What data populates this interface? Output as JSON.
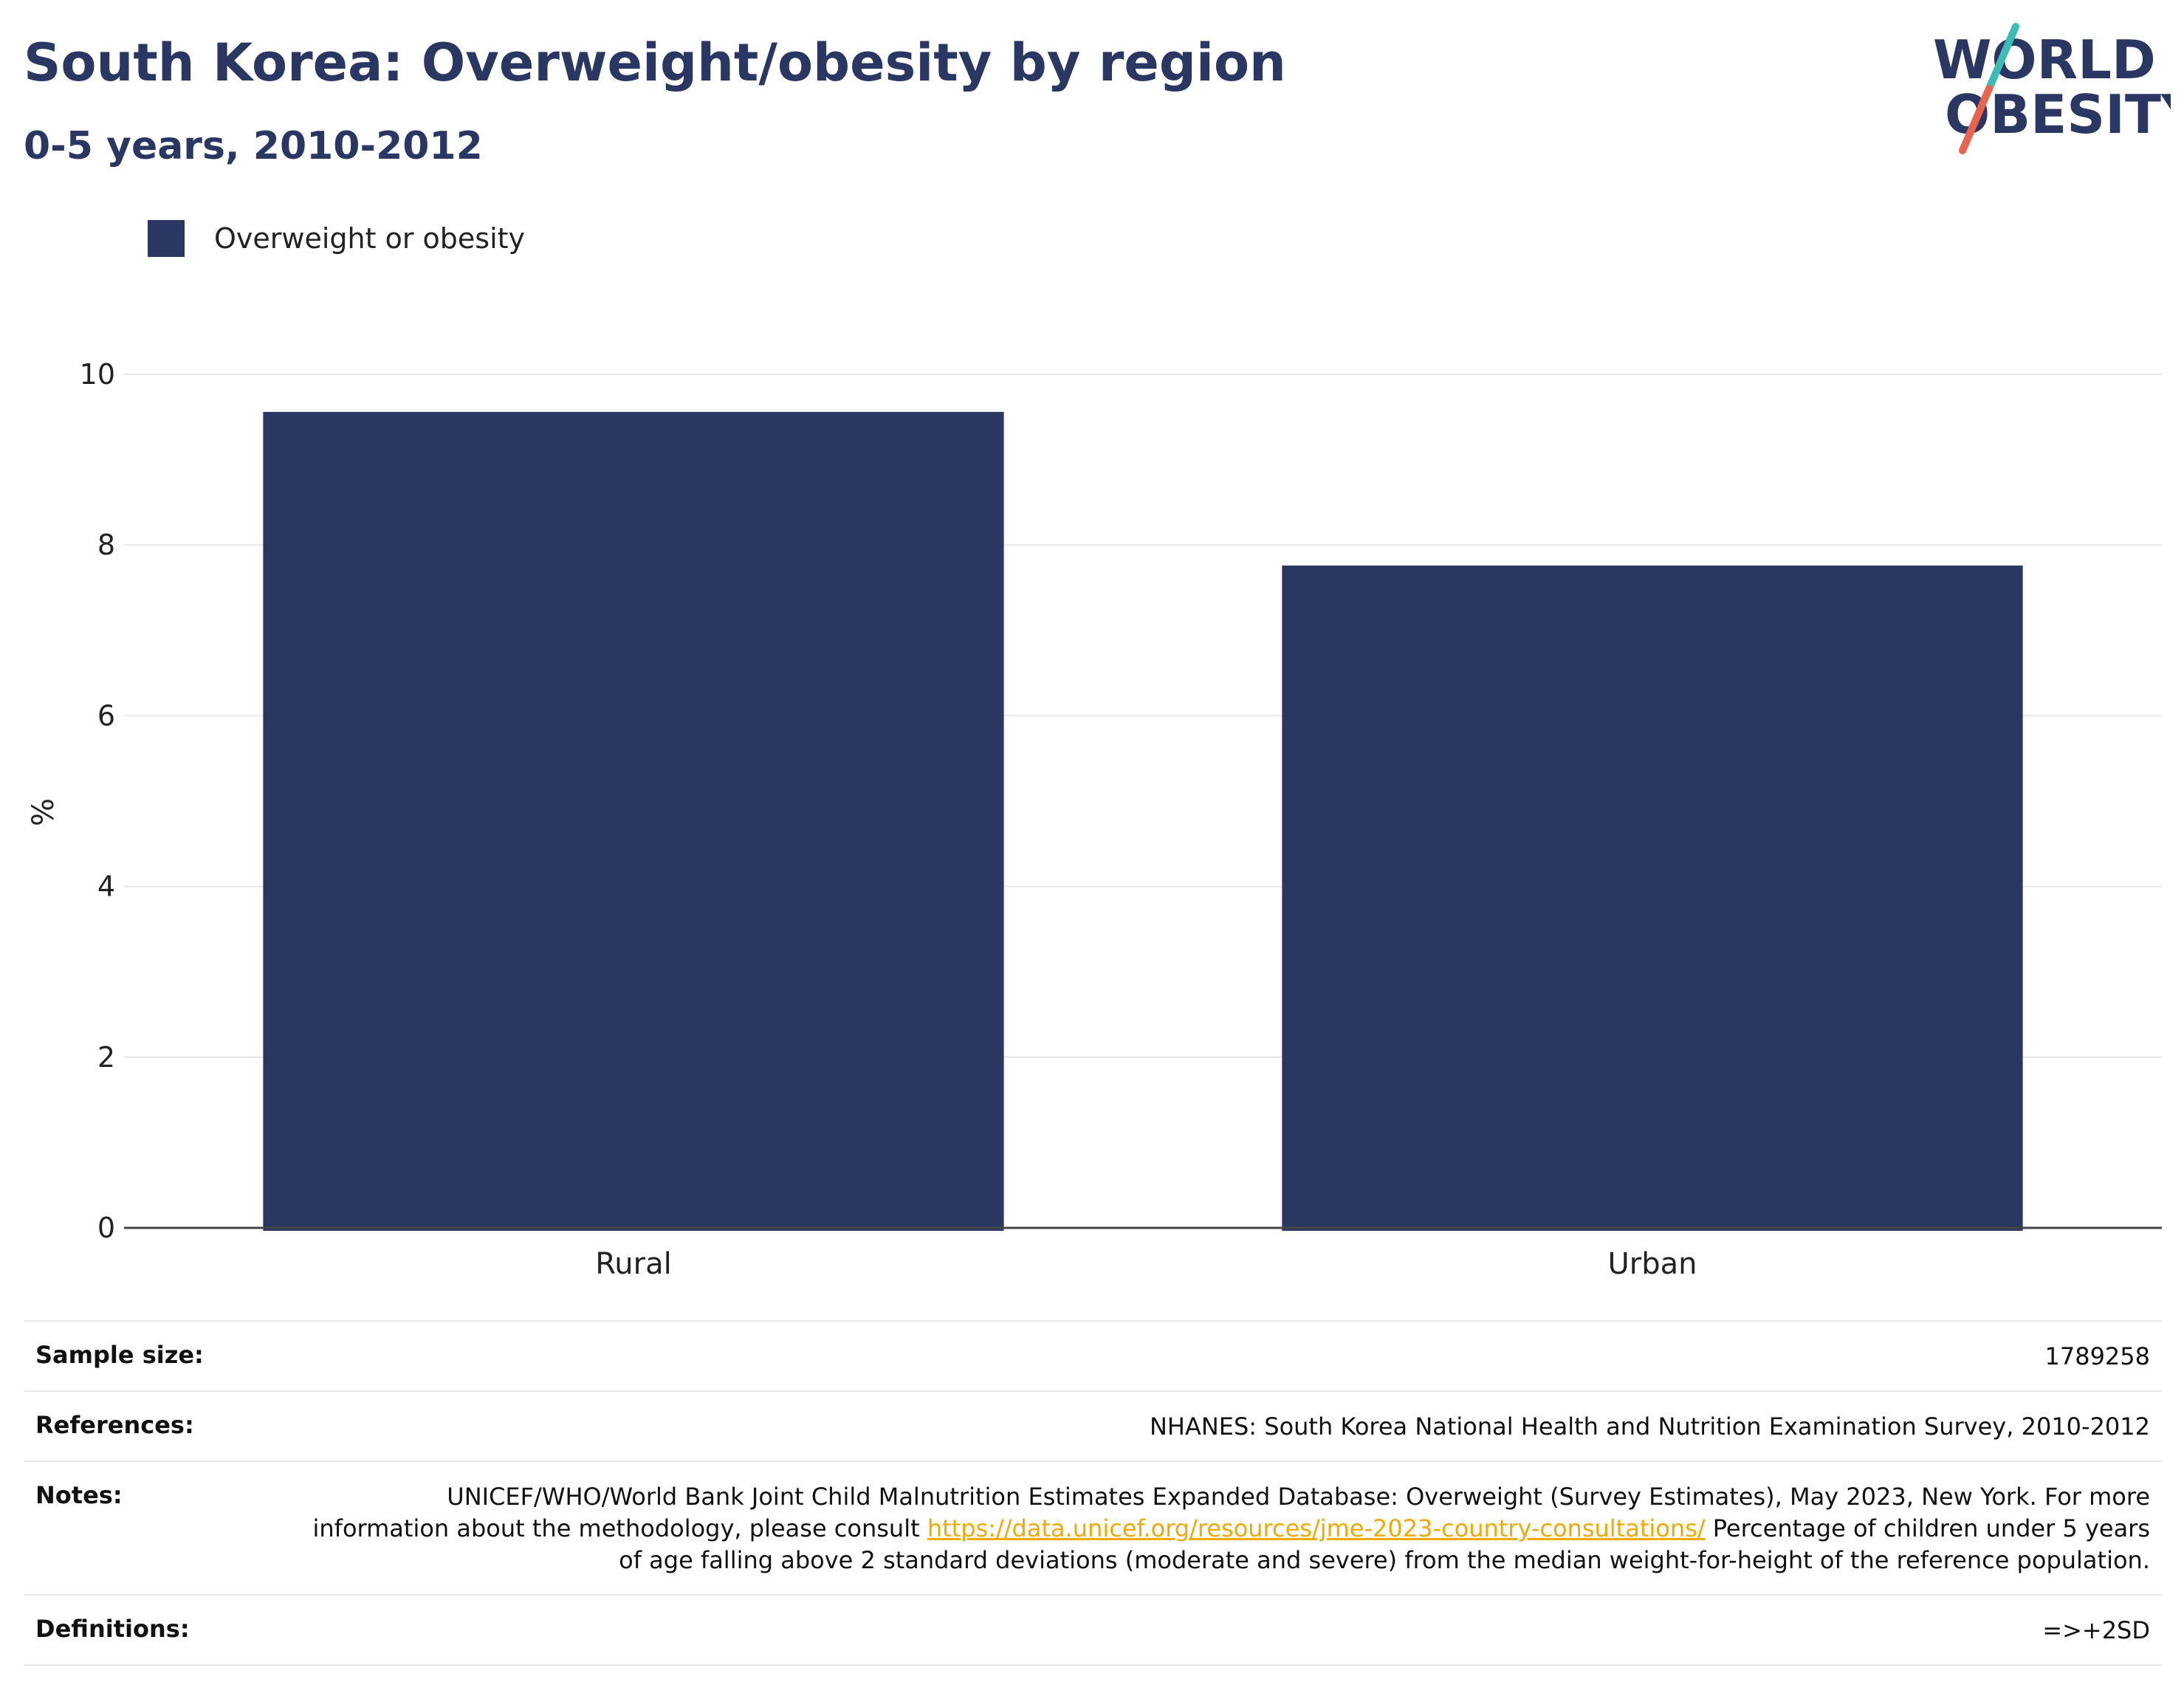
{
  "header": {
    "title": "South Korea: Overweight/obesity by region",
    "subtitle": "0-5 years, 2010-2012"
  },
  "logo": {
    "line1": "WORLD",
    "line2": "OBESITY",
    "colors": {
      "text": "#2b3763",
      "slash_top": "#3cbcb4",
      "slash_bottom": "#e8644f"
    }
  },
  "colors": {
    "bar": "#2b3763",
    "grid": "#e6e6e6",
    "axis": "#444444"
  },
  "chart_data": {
    "type": "bar",
    "title": "South Korea: Overweight/obesity by region",
    "subtitle": "0-5 years, 2010-2012",
    "categories": [
      "Rural",
      "Urban"
    ],
    "series": [
      {
        "name": "Overweight or obesity",
        "values": [
          9.56,
          7.76
        ],
        "color": "#2b3763"
      }
    ],
    "ylabel": "%",
    "xlabel": "",
    "ylim": [
      0,
      10
    ],
    "yticks": [
      0,
      2,
      4,
      6,
      8,
      10
    ],
    "grid": true,
    "legend": "top-left"
  },
  "info": {
    "sample_size": {
      "label": "Sample size:",
      "value": "1789258"
    },
    "references": {
      "label": "References:",
      "value": "NHANES: South Korea National Health and Nutrition Examination Survey, 2010-2012"
    },
    "notes": {
      "label": "Notes:",
      "text_before": "UNICEF/WHO/World Bank Joint Child Malnutrition Estimates Expanded Database: Overweight (Survey Estimates), May 2023, New York. For more information about the methodology, please consult ",
      "link": "https://data.unicef.org/resources/jme-2023-country-consultations/",
      "text_after": " Percentage of children under 5 years of age falling above 2 standard deviations (moderate and severe) from the median weight-for-height of the reference population."
    },
    "definitions": {
      "label": "Definitions:",
      "value": "=>+2SD"
    }
  }
}
